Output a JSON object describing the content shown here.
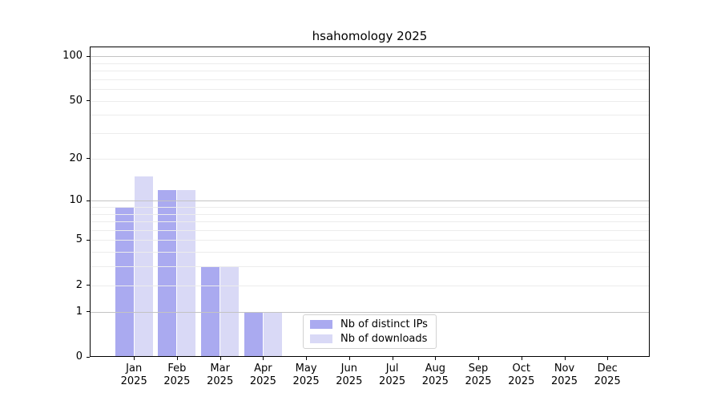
{
  "title": "hsahomology 2025",
  "chart_data": {
    "type": "bar",
    "title": "hsahomology 2025",
    "y_scale": "log1p",
    "ylim": [
      0,
      116
    ],
    "grid": "horizontal, drawn above bars",
    "year": "2025",
    "months": [
      "Jan",
      "Feb",
      "Mar",
      "Apr",
      "May",
      "Jun",
      "Jul",
      "Aug",
      "Sep",
      "Oct",
      "Nov",
      "Dec"
    ],
    "series": [
      {
        "name": "Nb of distinct IPs",
        "color": "#aaaaf0",
        "values": [
          9,
          12,
          3,
          1,
          0,
          0,
          0,
          0,
          0,
          0,
          0,
          0
        ]
      },
      {
        "name": "Nb of downloads",
        "color": "#d9d9f6",
        "values": [
          15,
          12,
          3,
          1,
          0,
          0,
          0,
          0,
          0,
          0,
          0,
          0
        ]
      }
    ],
    "y_ticks": [
      0,
      1,
      2,
      5,
      10,
      20,
      50,
      100
    ],
    "y_major_grid": [
      1,
      10,
      100
    ],
    "y_minor_grid": [
      2,
      3,
      4,
      5,
      6,
      7,
      8,
      9,
      20,
      30,
      40,
      50,
      60,
      70,
      80,
      90
    ],
    "legend_position": "inside bottom-center",
    "colors": {
      "axis": "#000000",
      "major_grid": "#c3c3c3",
      "minor_grid": "#ececec",
      "background": "#ffffff"
    }
  }
}
